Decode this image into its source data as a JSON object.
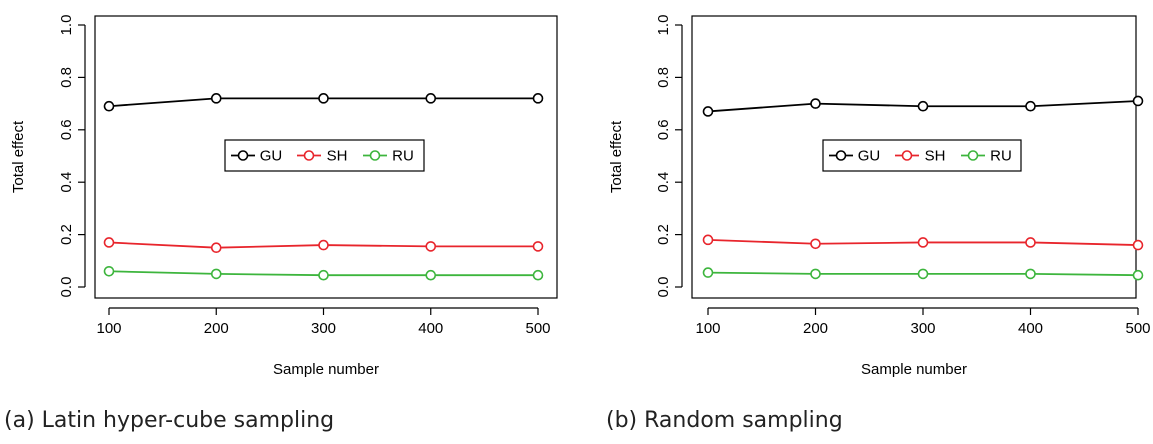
{
  "chart_data": [
    {
      "type": "line",
      "caption": "(a) Latin hyper-cube sampling",
      "xlabel": "Sample number",
      "ylabel": "Total effect",
      "x": [
        100,
        200,
        300,
        400,
        500
      ],
      "xticks": [
        "100",
        "200",
        "300",
        "400",
        "500"
      ],
      "yticks": [
        "0.0",
        "0.2",
        "0.4",
        "0.6",
        "0.8",
        "1.0"
      ],
      "ylim": [
        0,
        1
      ],
      "grid": false,
      "legend_position": "center",
      "series": [
        {
          "name": "GU",
          "color": "#000000",
          "values": [
            0.69,
            0.72,
            0.72,
            0.72,
            0.72
          ]
        },
        {
          "name": "SH",
          "color": "#e8252c",
          "values": [
            0.17,
            0.15,
            0.16,
            0.155,
            0.155
          ]
        },
        {
          "name": "RU",
          "color": "#3db53d",
          "values": [
            0.06,
            0.05,
            0.045,
            0.045,
            0.045
          ]
        }
      ]
    },
    {
      "type": "line",
      "caption": "(b) Random sampling",
      "xlabel": "Sample number",
      "ylabel": "Total effect",
      "x": [
        100,
        200,
        300,
        400,
        500
      ],
      "xticks": [
        "100",
        "200",
        "300",
        "400",
        "500"
      ],
      "yticks": [
        "0.0",
        "0.2",
        "0.4",
        "0.6",
        "0.8",
        "1.0"
      ],
      "ylim": [
        0,
        1
      ],
      "grid": false,
      "legend_position": "center",
      "series": [
        {
          "name": "GU",
          "color": "#000000",
          "values": [
            0.67,
            0.7,
            0.69,
            0.69,
            0.71
          ]
        },
        {
          "name": "SH",
          "color": "#e8252c",
          "values": [
            0.18,
            0.165,
            0.17,
            0.17,
            0.16
          ]
        },
        {
          "name": "RU",
          "color": "#3db53d",
          "values": [
            0.055,
            0.05,
            0.05,
            0.05,
            0.045
          ]
        }
      ]
    }
  ]
}
